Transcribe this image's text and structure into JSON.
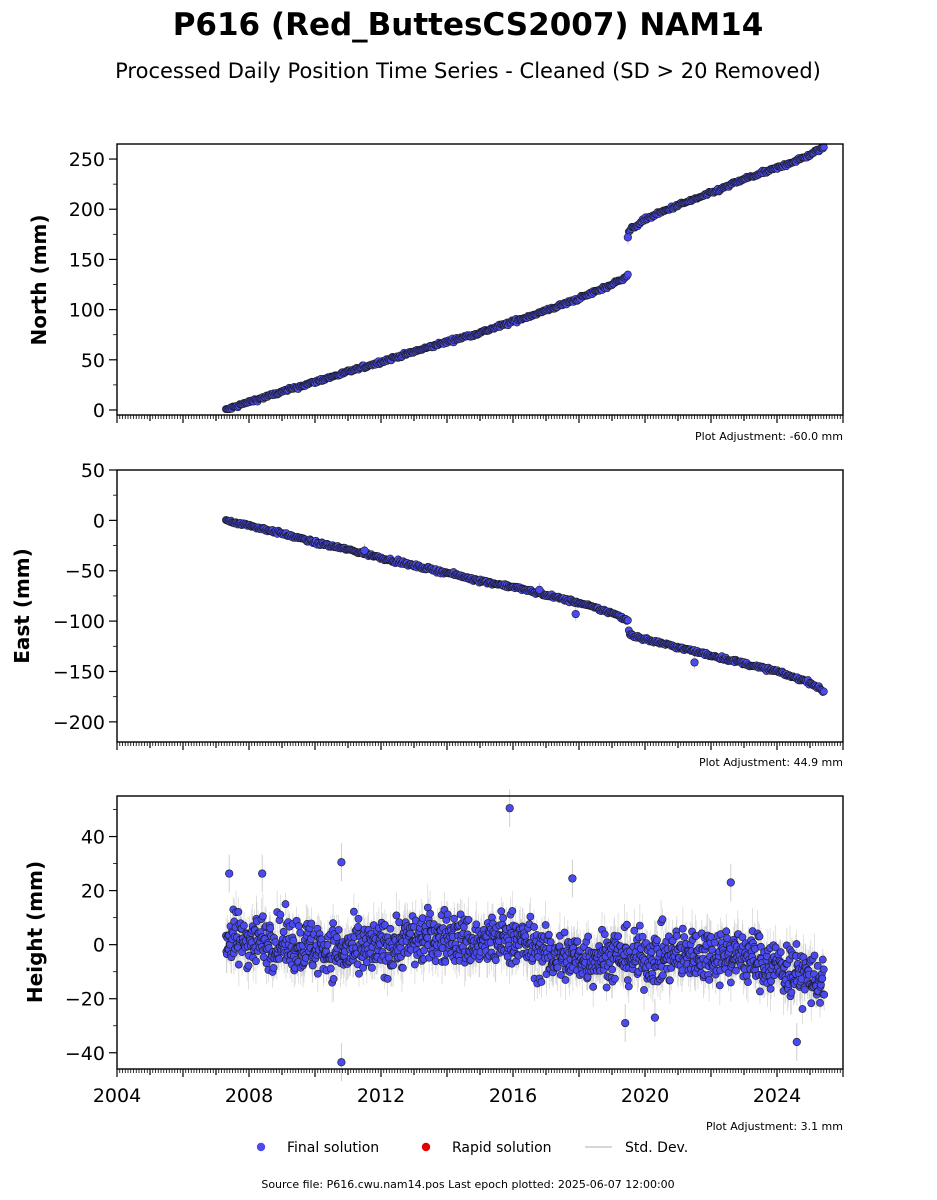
{
  "figure": {
    "title": "P616 (Red_ButtesCS2007) NAM14",
    "subtitle": "Processed Daily Position Time Series - Cleaned (SD > 20 Removed)",
    "source_note": "Source file: P616.cwu.nam14.pos  Last epoch plotted: 2025-06-07 12:00:00"
  },
  "legend": {
    "placement": "bottom-center",
    "items": [
      {
        "label": "Final solution",
        "marker": "circle",
        "color": "#4a4af0"
      },
      {
        "label": "Rapid solution",
        "marker": "circle",
        "color": "#e00000"
      },
      {
        "label": "Std. Dev.",
        "marker": "line",
        "color": "#c8c8c8"
      }
    ]
  },
  "colors": {
    "final": "#4a4af0",
    "marker_edge": "#1a1a1a",
    "stddev": "#b4b4b4",
    "axis": "#000000"
  },
  "chart_data": [
    {
      "type": "scatter",
      "panel": "north",
      "ylabel": "North (mm)",
      "adjustment_note": "Plot Adjustment: -60.0 mm",
      "xlim": [
        2004.0,
        2026.0
      ],
      "ylim": [
        -5,
        265
      ],
      "yticks": [
        0,
        50,
        100,
        150,
        200,
        250
      ],
      "ytick_labels": [
        "0",
        "50",
        "100",
        "150",
        "200",
        "250"
      ],
      "grid": false,
      "series": [
        {
          "name": "Final solution",
          "x": [
            2007.3,
            2008.0,
            2009.0,
            2010.0,
            2011.0,
            2012.0,
            2013.0,
            2014.0,
            2015.0,
            2016.0,
            2017.0,
            2018.0,
            2019.0,
            2019.48,
            2019.5,
            2020.0,
            2021.0,
            2022.0,
            2023.0,
            2024.0,
            2025.0,
            2025.43
          ],
          "y": [
            0,
            8,
            18,
            28,
            38,
            48,
            58,
            68,
            77,
            88,
            99,
            111,
            125,
            134,
            178,
            190,
            204,
            216,
            230,
            241,
            254,
            262
          ]
        }
      ],
      "outliers": [
        {
          "x": 2019.48,
          "y": 172
        }
      ]
    },
    {
      "type": "scatter",
      "panel": "east",
      "ylabel": "East (mm)",
      "adjustment_note": "Plot Adjustment: 44.9 mm",
      "xlim": [
        2004.0,
        2026.0
      ],
      "ylim": [
        -220,
        50
      ],
      "yticks": [
        50,
        0,
        -50,
        -100,
        -150,
        -200
      ],
      "ytick_labels": [
        "50",
        "0",
        "−50",
        "−100",
        "−150",
        "−200"
      ],
      "grid": false,
      "series": [
        {
          "name": "Final solution",
          "x": [
            2007.3,
            2008.0,
            2009.0,
            2010.0,
            2011.0,
            2012.0,
            2013.0,
            2014.0,
            2015.0,
            2016.0,
            2017.0,
            2018.0,
            2019.0,
            2019.48,
            2019.52,
            2020.0,
            2021.0,
            2022.0,
            2023.0,
            2024.0,
            2025.0,
            2025.43
          ],
          "y": [
            0,
            -5,
            -13,
            -22,
            -29,
            -37,
            -45,
            -52,
            -60,
            -66,
            -74,
            -82,
            -92,
            -99,
            -113,
            -118,
            -126,
            -134,
            -142,
            -150,
            -161,
            -170
          ]
        }
      ],
      "outliers": [
        {
          "x": 2011.5,
          "y": -30
        },
        {
          "x": 2016.8,
          "y": -69
        },
        {
          "x": 2017.9,
          "y": -93
        },
        {
          "x": 2021.5,
          "y": -141
        }
      ]
    },
    {
      "type": "scatter",
      "panel": "height",
      "ylabel": "Height (mm)",
      "adjustment_note": "Plot Adjustment: 3.1 mm",
      "xlim": [
        2004.0,
        2026.0
      ],
      "ylim": [
        -46,
        55
      ],
      "yticks": [
        40,
        20,
        0,
        -20,
        -40
      ],
      "ytick_labels": [
        "40",
        "20",
        "0",
        "−20",
        "−40"
      ],
      "xticks": [
        2004,
        2008,
        2012,
        2016,
        2020,
        2024
      ],
      "xtick_labels": [
        "2004",
        "2008",
        "2012",
        "2016",
        "2020",
        "2024"
      ],
      "grid": false,
      "series": [
        {
          "name": "Final solution",
          "x": [
            2007.3,
            2008.0,
            2009.0,
            2010.0,
            2011.0,
            2012.0,
            2013.0,
            2014.0,
            2015.0,
            2016.0,
            2017.0,
            2018.0,
            2019.0,
            2020.0,
            2021.0,
            2022.0,
            2023.0,
            2024.0,
            2025.0,
            2025.43
          ],
          "y": [
            2,
            2,
            1,
            -1,
            -3,
            -1,
            2,
            3,
            0,
            3,
            -4,
            -5,
            -4,
            -5,
            -4,
            -3,
            -4,
            -8,
            -12,
            -14
          ],
          "spread": 7
        }
      ],
      "outliers": [
        {
          "x": 2015.9,
          "y": 50.5
        },
        {
          "x": 2010.8,
          "y": 30.5
        },
        {
          "x": 2007.4,
          "y": 26.3
        },
        {
          "x": 2008.4,
          "y": 26.3
        },
        {
          "x": 2017.8,
          "y": 24.5
        },
        {
          "x": 2022.6,
          "y": 23
        },
        {
          "x": 2010.8,
          "y": -43.5
        },
        {
          "x": 2024.6,
          "y": -36
        },
        {
          "x": 2019.4,
          "y": -29
        },
        {
          "x": 2020.3,
          "y": -27
        }
      ]
    }
  ]
}
